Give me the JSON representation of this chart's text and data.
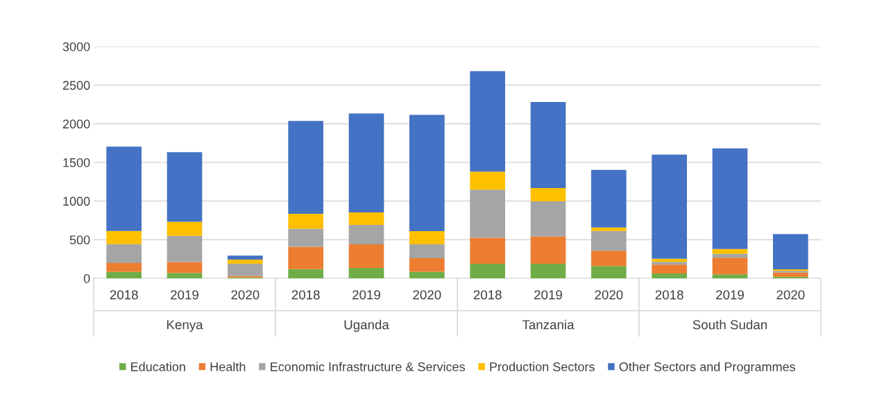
{
  "chart_data": {
    "type": "bar",
    "stacked": true,
    "categories": [
      "2018",
      "2019",
      "2020",
      "2018",
      "2019",
      "2020",
      "2018",
      "2019",
      "2020",
      "2018",
      "2019",
      "2020"
    ],
    "annotations": [
      "Kenya",
      "Uganda",
      "Tanzania",
      "South Sudan"
    ],
    "series": [
      {
        "name": "Education",
        "color": "#70ad47",
        "values": [
          84,
          69,
          12,
          120,
          135,
          85,
          189,
          189,
          159,
          63,
          51,
          21
        ]
      },
      {
        "name": "Health",
        "color": "#ed7d31",
        "values": [
          114,
          143,
          18,
          288,
          305,
          175,
          337,
          353,
          198,
          114,
          216,
          54
        ]
      },
      {
        "name": "Economic Infrastructure & Services",
        "color": "#a5a5a5",
        "values": [
          245,
          339,
          159,
          234,
          251,
          180,
          621,
          455,
          256,
          36,
          50,
          21
        ]
      },
      {
        "name": "Production Sectors",
        "color": "#ffc000",
        "values": [
          170,
          180,
          54,
          194,
          162,
          171,
          233,
          170,
          45,
          41,
          63,
          21
        ]
      },
      {
        "name": "Other Sectors and Programmes",
        "color": "#4472c4",
        "values": [
          1092,
          901,
          51,
          1200,
          1280,
          1505,
          1302,
          1114,
          746,
          1347,
          1303,
          455
        ]
      }
    ],
    "ylim": [
      0,
      3000
    ],
    "yticks": [
      0,
      500,
      1000,
      1500,
      2000,
      2500,
      3000
    ],
    "grid": "y",
    "legend": "bottom"
  }
}
